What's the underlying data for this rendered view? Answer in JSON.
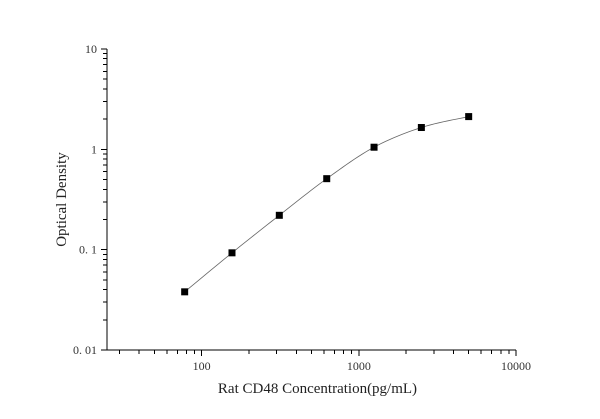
{
  "chart_data": {
    "type": "scatter",
    "xlabel": "Rat CD48 Concentration(pg/mL)",
    "ylabel": "Optical Density",
    "x_scale": "log",
    "y_scale": "log",
    "xlim": [
      25,
      10000
    ],
    "ylim": [
      0.01,
      10
    ],
    "grid": false,
    "x_ticks": [
      {
        "value": 100,
        "label": "100"
      },
      {
        "value": 1000,
        "label": "1000"
      },
      {
        "value": 10000,
        "label": "10000"
      }
    ],
    "y_ticks": [
      {
        "value": 0.01,
        "label": "0. 01"
      },
      {
        "value": 0.1,
        "label": "0. 1"
      },
      {
        "value": 1,
        "label": "1"
      },
      {
        "value": 10,
        "label": "10"
      }
    ],
    "series": [
      {
        "points": [
          {
            "x": 78,
            "y": 0.038
          },
          {
            "x": 156,
            "y": 0.093
          },
          {
            "x": 312,
            "y": 0.22
          },
          {
            "x": 625,
            "y": 0.51
          },
          {
            "x": 1250,
            "y": 1.05
          },
          {
            "x": 2500,
            "y": 1.65
          },
          {
            "x": 5000,
            "y": 2.12
          }
        ]
      }
    ],
    "colors": {
      "axis": "#000000",
      "curve": "#666666",
      "marker": "#000000"
    }
  }
}
